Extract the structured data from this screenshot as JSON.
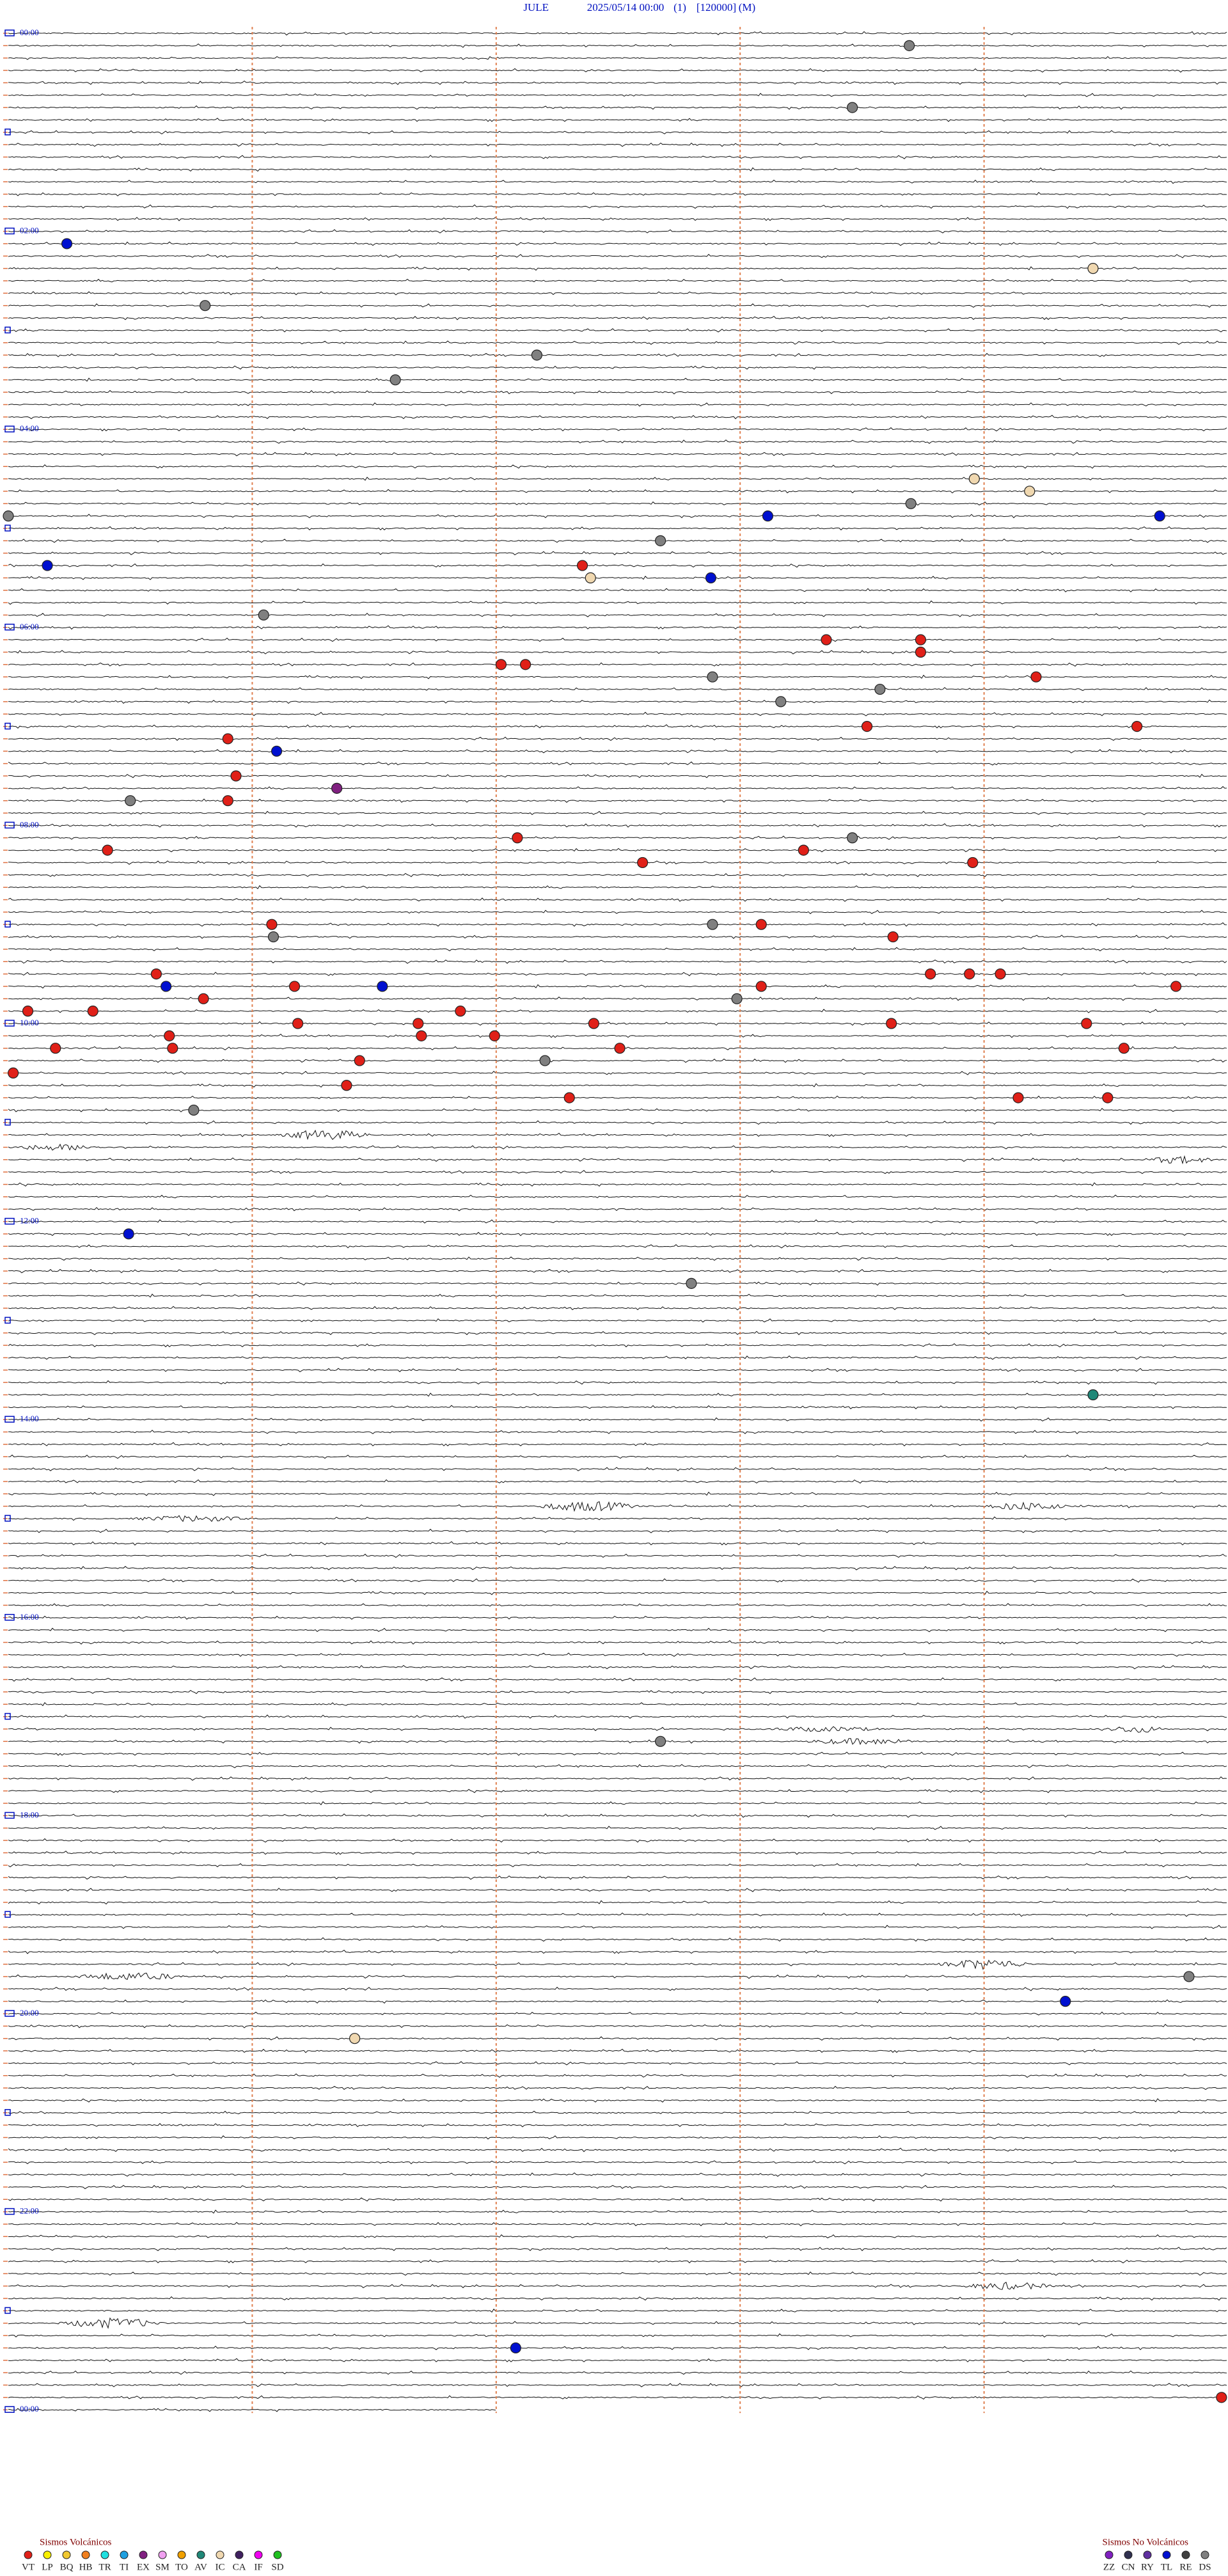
{
  "header": {
    "station": "JULE",
    "datetime": "2025/05/14 00:00",
    "channel": "(1)",
    "scale": "[120000]",
    "mode": "(M)"
  },
  "hour_labels": [
    "00:00",
    "02:00",
    "04:00",
    "06:00",
    "08:00",
    "10:00",
    "12:00",
    "14:00",
    "16:00",
    "18:00",
    "20:00",
    "22:00",
    "00:00"
  ],
  "legend": {
    "volcanic": {
      "title": "Sismos Volcánicos",
      "items": [
        {
          "code": "VT",
          "color": "#e02018"
        },
        {
          "code": "LP",
          "color": "#f8f000"
        },
        {
          "code": "BQ",
          "color": "#f0c830"
        },
        {
          "code": "HB",
          "color": "#f08020"
        },
        {
          "code": "TR",
          "color": "#20e0e0"
        },
        {
          "code": "TI",
          "color": "#20a0e0"
        },
        {
          "code": "EX",
          "color": "#802080"
        },
        {
          "code": "SM",
          "color": "#f0a0f0"
        },
        {
          "code": "TO",
          "color": "#f0a000"
        },
        {
          "code": "AV",
          "color": "#208878"
        },
        {
          "code": "IC",
          "color": "#f0d8b0"
        },
        {
          "code": "CA",
          "color": "#402060"
        },
        {
          "code": "IF",
          "color": "#f000f0"
        },
        {
          "code": "SD",
          "color": "#20c020"
        }
      ]
    },
    "non_volcanic": {
      "title": "Sismos No Volcánicos",
      "items": [
        {
          "code": "ZZ",
          "color": "#8020c0"
        },
        {
          "code": "CN",
          "color": "#303050"
        },
        {
          "code": "RY",
          "color": "#6030a0"
        },
        {
          "code": "TL",
          "color": "#0010d0"
        },
        {
          "code": "RE",
          "color": "#404040"
        },
        {
          "code": "DS",
          "color": "#808080"
        }
      ]
    }
  },
  "events": [
    [
      1,
      5.54,
      "DS"
    ],
    [
      6,
      5.19,
      "DS"
    ],
    [
      17,
      0.36,
      "TL"
    ],
    [
      19,
      6.67,
      "IC"
    ],
    [
      22,
      1.21,
      "DS"
    ],
    [
      26,
      3.25,
      "DS"
    ],
    [
      28,
      2.38,
      "DS"
    ],
    [
      36,
      5.94,
      "IC"
    ],
    [
      37,
      6.28,
      "IC"
    ],
    [
      38,
      5.55,
      "DS"
    ],
    [
      39,
      0,
      "DS"
    ],
    [
      39,
      4.67,
      "TL"
    ],
    [
      39,
      7.08,
      "TL"
    ],
    [
      41,
      4.01,
      "DS"
    ],
    [
      43,
      0.24,
      "TL"
    ],
    [
      43,
      3.53,
      "VT"
    ],
    [
      44,
      3.58,
      "IC"
    ],
    [
      44,
      4.32,
      "TL"
    ],
    [
      47,
      1.57,
      "DS"
    ],
    [
      49,
      5.03,
      "VT"
    ],
    [
      49,
      5.61,
      "VT"
    ],
    [
      50,
      5.61,
      "VT"
    ],
    [
      51,
      3.03,
      "VT"
    ],
    [
      51,
      3.18,
      "VT"
    ],
    [
      52,
      4.33,
      "DS"
    ],
    [
      52,
      6.32,
      "VT"
    ],
    [
      53,
      5.36,
      "DS"
    ],
    [
      54,
      4.75,
      "DS"
    ],
    [
      56,
      6.94,
      "VT"
    ],
    [
      56,
      5.28,
      "VT"
    ],
    [
      57,
      1.35,
      "VT"
    ],
    [
      58,
      1.65,
      "TL"
    ],
    [
      60,
      1.4,
      "VT"
    ],
    [
      61,
      2.02,
      "EX"
    ],
    [
      62,
      1.35,
      "VT"
    ],
    [
      62,
      0.75,
      "DS"
    ],
    [
      65,
      3.13,
      "VT"
    ],
    [
      65,
      5.19,
      "DS"
    ],
    [
      66,
      0.61,
      "VT"
    ],
    [
      66,
      4.89,
      "VT"
    ],
    [
      67,
      3.9,
      "VT"
    ],
    [
      67,
      5.93,
      "VT"
    ],
    [
      72,
      4.33,
      "DS"
    ],
    [
      72,
      1.62,
      "VT"
    ],
    [
      72,
      4.63,
      "VT"
    ],
    [
      73,
      1.63,
      "DS"
    ],
    [
      73,
      5.44,
      "VT"
    ],
    [
      76,
      5.67,
      "VT"
    ],
    [
      76,
      5.91,
      "VT"
    ],
    [
      76,
      6.1,
      "VT"
    ],
    [
      76,
      0.91,
      "VT"
    ],
    [
      77,
      0.97,
      "TL"
    ],
    [
      77,
      2.3,
      "TL"
    ],
    [
      77,
      1.76,
      "VT"
    ],
    [
      77,
      4.63,
      "VT"
    ],
    [
      77,
      7.18,
      "VT"
    ],
    [
      78,
      4.48,
      "DS"
    ],
    [
      78,
      1.2,
      "VT"
    ],
    [
      79,
      0.12,
      "VT"
    ],
    [
      79,
      0.52,
      "VT"
    ],
    [
      79,
      2.78,
      "VT"
    ],
    [
      80,
      2.52,
      "VT"
    ],
    [
      80,
      1.78,
      "VT"
    ],
    [
      80,
      3.6,
      "VT"
    ],
    [
      80,
      5.43,
      "VT"
    ],
    [
      80,
      6.63,
      "VT"
    ],
    [
      81,
      0.99,
      "VT"
    ],
    [
      81,
      2.54,
      "VT"
    ],
    [
      81,
      2.99,
      "VT"
    ],
    [
      82,
      6.86,
      "VT"
    ],
    [
      82,
      0.29,
      "VT"
    ],
    [
      82,
      1.01,
      "VT"
    ],
    [
      82,
      3.76,
      "VT"
    ],
    [
      83,
      2.16,
      "VT"
    ],
    [
      83,
      3.3,
      "DS"
    ],
    [
      84,
      0.03,
      "VT"
    ],
    [
      85,
      2.08,
      "VT"
    ],
    [
      86,
      3.45,
      "VT"
    ],
    [
      86,
      6.21,
      "VT"
    ],
    [
      86,
      6.76,
      "VT"
    ],
    [
      87,
      1.14,
      "DS"
    ],
    [
      97,
      0.74,
      "TL"
    ],
    [
      101,
      4.2,
      "DS"
    ],
    [
      110,
      6.67,
      "AV"
    ],
    [
      138,
      4.01,
      "DS"
    ],
    [
      157,
      7.26,
      "DS"
    ],
    [
      159,
      6.5,
      "TL"
    ],
    [
      162,
      2.13,
      "IC"
    ],
    [
      187,
      3.12,
      "TL"
    ],
    [
      191,
      7.46,
      "VT"
    ]
  ]
}
